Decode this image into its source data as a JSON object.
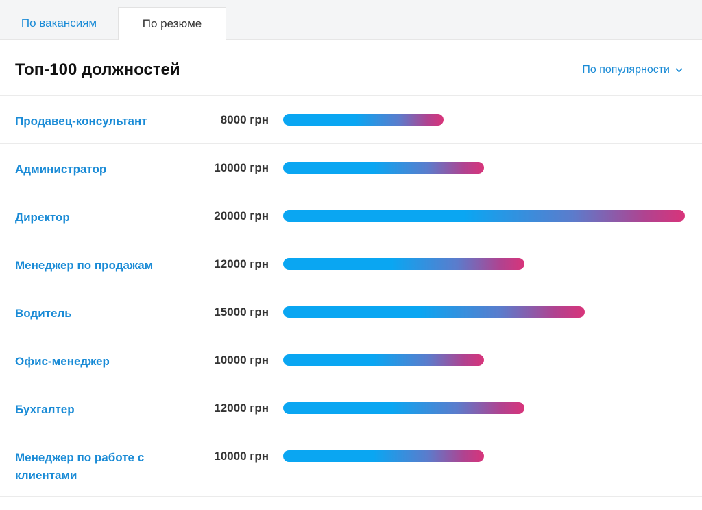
{
  "tabs": [
    {
      "label": "По вакансиям",
      "active": false
    },
    {
      "label": "По резюме",
      "active": true
    }
  ],
  "header": {
    "title": "Топ-100 должностей",
    "sort_label": "По популярности"
  },
  "colors": {
    "link": "#1a8bd6",
    "bar_start": "#0aa6f2",
    "bar_end": "#d8347a"
  },
  "salary_max": 20000,
  "rows": [
    {
      "title": "Продавец-консультант",
      "salary": 8000,
      "salary_label": "8000 грн"
    },
    {
      "title": "Администратор",
      "salary": 10000,
      "salary_label": "10000 грн"
    },
    {
      "title": "Директор",
      "salary": 20000,
      "salary_label": "20000 грн"
    },
    {
      "title": "Менеджер по продажам",
      "salary": 12000,
      "salary_label": "12000 грн"
    },
    {
      "title": "Водитель",
      "salary": 15000,
      "salary_label": "15000 грн"
    },
    {
      "title": "Офис-менеджер",
      "salary": 10000,
      "salary_label": "10000 грн"
    },
    {
      "title": "Бухгалтер",
      "salary": 12000,
      "salary_label": "12000 грн"
    },
    {
      "title": "Менеджер по работе с клиентами",
      "salary": 10000,
      "salary_label": "10000 грн"
    }
  ]
}
